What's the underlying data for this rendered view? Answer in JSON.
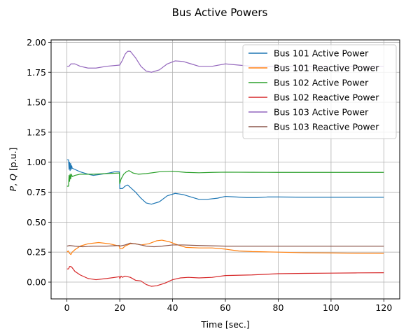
{
  "chart_data": {
    "type": "line",
    "title": "Bus Active Powers",
    "xlabel": "Time [sec.]",
    "ylabel": "P, Q [p.u.]",
    "xlim": [
      -6,
      126
    ],
    "ylim": [
      -0.14,
      2.02
    ],
    "xticks": [
      0,
      20,
      40,
      60,
      80,
      100,
      120
    ],
    "yticks": [
      0.0,
      0.25,
      0.5,
      0.75,
      1.0,
      1.25,
      1.5,
      1.75,
      2.0
    ],
    "xtick_labels": [
      "0",
      "20",
      "40",
      "60",
      "80",
      "100",
      "120"
    ],
    "ytick_labels": [
      "0.00",
      "0.25",
      "0.50",
      "0.75",
      "1.00",
      "1.25",
      "1.50",
      "1.75",
      "2.00"
    ],
    "grid": true,
    "legend_position": "top-right",
    "series": [
      {
        "name": "Bus 101 Active Power",
        "color": "#1f77b4",
        "points": [
          [
            0,
            1.02
          ],
          [
            0.6,
            1.02
          ],
          [
            0.8,
            0.94
          ],
          [
            1.0,
            1.0
          ],
          [
            1.2,
            0.93
          ],
          [
            1.4,
            0.99
          ],
          [
            1.6,
            0.94
          ],
          [
            1.8,
            0.97
          ],
          [
            2,
            0.95
          ],
          [
            3,
            0.94
          ],
          [
            5,
            0.92
          ],
          [
            8,
            0.9
          ],
          [
            10,
            0.89
          ],
          [
            13,
            0.9
          ],
          [
            16,
            0.91
          ],
          [
            18,
            0.92
          ],
          [
            19.9,
            0.92
          ],
          [
            20,
            0.78
          ],
          [
            21,
            0.78
          ],
          [
            22,
            0.8
          ],
          [
            23,
            0.81
          ],
          [
            24,
            0.79
          ],
          [
            26,
            0.75
          ],
          [
            28,
            0.7
          ],
          [
            30,
            0.66
          ],
          [
            32,
            0.65
          ],
          [
            35,
            0.67
          ],
          [
            38,
            0.72
          ],
          [
            41,
            0.74
          ],
          [
            44,
            0.73
          ],
          [
            47,
            0.71
          ],
          [
            50,
            0.69
          ],
          [
            53,
            0.69
          ],
          [
            57,
            0.7
          ],
          [
            60,
            0.715
          ],
          [
            64,
            0.71
          ],
          [
            68,
            0.705
          ],
          [
            72,
            0.705
          ],
          [
            76,
            0.71
          ],
          [
            80,
            0.71
          ],
          [
            90,
            0.708
          ],
          [
            100,
            0.708
          ],
          [
            110,
            0.708
          ],
          [
            120,
            0.708
          ]
        ]
      },
      {
        "name": "Bus 101 Reactive Power",
        "color": "#ff7f0e",
        "points": [
          [
            0,
            0.25
          ],
          [
            0.5,
            0.26
          ],
          [
            1,
            0.24
          ],
          [
            1.5,
            0.23
          ],
          [
            2,
            0.25
          ],
          [
            3,
            0.27
          ],
          [
            5,
            0.3
          ],
          [
            8,
            0.32
          ],
          [
            12,
            0.33
          ],
          [
            16,
            0.32
          ],
          [
            19.9,
            0.3
          ],
          [
            20,
            0.28
          ],
          [
            21,
            0.28
          ],
          [
            22,
            0.3
          ],
          [
            24,
            0.32
          ],
          [
            26,
            0.32
          ],
          [
            28,
            0.31
          ],
          [
            31,
            0.32
          ],
          [
            34,
            0.345
          ],
          [
            36,
            0.35
          ],
          [
            39,
            0.335
          ],
          [
            42,
            0.31
          ],
          [
            45,
            0.29
          ],
          [
            50,
            0.285
          ],
          [
            55,
            0.285
          ],
          [
            60,
            0.275
          ],
          [
            65,
            0.26
          ],
          [
            70,
            0.255
          ],
          [
            80,
            0.25
          ],
          [
            90,
            0.245
          ],
          [
            100,
            0.243
          ],
          [
            110,
            0.241
          ],
          [
            120,
            0.24
          ]
        ]
      },
      {
        "name": "Bus 102 Active Power",
        "color": "#2ca02c",
        "points": [
          [
            0,
            0.8
          ],
          [
            0.6,
            0.8
          ],
          [
            0.8,
            0.89
          ],
          [
            1.0,
            0.84
          ],
          [
            1.2,
            0.9
          ],
          [
            1.4,
            0.86
          ],
          [
            1.7,
            0.9
          ],
          [
            2,
            0.88
          ],
          [
            3,
            0.89
          ],
          [
            5,
            0.9
          ],
          [
            10,
            0.9
          ],
          [
            15,
            0.905
          ],
          [
            19.9,
            0.91
          ],
          [
            20,
            0.82
          ],
          [
            20.5,
            0.86
          ],
          [
            21.5,
            0.9
          ],
          [
            22.5,
            0.92
          ],
          [
            23.5,
            0.93
          ],
          [
            25,
            0.91
          ],
          [
            27,
            0.9
          ],
          [
            30,
            0.905
          ],
          [
            35,
            0.92
          ],
          [
            40,
            0.925
          ],
          [
            45,
            0.915
          ],
          [
            50,
            0.912
          ],
          [
            55,
            0.915
          ],
          [
            60,
            0.917
          ],
          [
            70,
            0.916
          ],
          [
            80,
            0.915
          ],
          [
            100,
            0.915
          ],
          [
            120,
            0.915
          ]
        ]
      },
      {
        "name": "Bus 102 Reactive Power",
        "color": "#d62728",
        "points": [
          [
            0,
            0.11
          ],
          [
            0.6,
            0.11
          ],
          [
            1,
            0.13
          ],
          [
            1.5,
            0.13
          ],
          [
            2,
            0.12
          ],
          [
            3,
            0.09
          ],
          [
            5,
            0.06
          ],
          [
            8,
            0.03
          ],
          [
            11,
            0.02
          ],
          [
            15,
            0.03
          ],
          [
            19.9,
            0.045
          ],
          [
            20,
            0.03
          ],
          [
            20.5,
            0.05
          ],
          [
            21,
            0.04
          ],
          [
            22,
            0.05
          ],
          [
            24,
            0.04
          ],
          [
            26,
            0.015
          ],
          [
            28,
            0.01
          ],
          [
            30,
            -0.02
          ],
          [
            32,
            -0.035
          ],
          [
            34,
            -0.03
          ],
          [
            37,
            -0.01
          ],
          [
            40,
            0.02
          ],
          [
            43,
            0.035
          ],
          [
            46,
            0.04
          ],
          [
            50,
            0.035
          ],
          [
            55,
            0.04
          ],
          [
            60,
            0.055
          ],
          [
            70,
            0.06
          ],
          [
            80,
            0.07
          ],
          [
            90,
            0.073
          ],
          [
            100,
            0.075
          ],
          [
            110,
            0.077
          ],
          [
            120,
            0.078
          ]
        ]
      },
      {
        "name": "Bus 103 Active Power",
        "color": "#9467bd",
        "points": [
          [
            0,
            1.8
          ],
          [
            0.8,
            1.8
          ],
          [
            1.5,
            1.82
          ],
          [
            3,
            1.82
          ],
          [
            5,
            1.8
          ],
          [
            8,
            1.785
          ],
          [
            11,
            1.785
          ],
          [
            15,
            1.8
          ],
          [
            19.9,
            1.81
          ],
          [
            20,
            1.81
          ],
          [
            21,
            1.85
          ],
          [
            22,
            1.9
          ],
          [
            23,
            1.925
          ],
          [
            24,
            1.925
          ],
          [
            26,
            1.87
          ],
          [
            28,
            1.8
          ],
          [
            30,
            1.76
          ],
          [
            32,
            1.75
          ],
          [
            35,
            1.77
          ],
          [
            38,
            1.82
          ],
          [
            41,
            1.845
          ],
          [
            44,
            1.84
          ],
          [
            47,
            1.82
          ],
          [
            50,
            1.8
          ],
          [
            55,
            1.8
          ],
          [
            60,
            1.82
          ],
          [
            65,
            1.81
          ],
          [
            70,
            1.8
          ],
          [
            75,
            1.8
          ],
          [
            80,
            1.8
          ],
          [
            100,
            1.8
          ],
          [
            120,
            1.8
          ]
        ]
      },
      {
        "name": "Bus 103 Reactive Power",
        "color": "#8c564b",
        "points": [
          [
            0,
            0.3
          ],
          [
            1,
            0.305
          ],
          [
            3,
            0.3
          ],
          [
            6,
            0.295
          ],
          [
            10,
            0.3
          ],
          [
            15,
            0.3
          ],
          [
            19.9,
            0.305
          ],
          [
            20,
            0.3
          ],
          [
            22,
            0.31
          ],
          [
            24,
            0.325
          ],
          [
            27,
            0.315
          ],
          [
            30,
            0.3
          ],
          [
            33,
            0.295
          ],
          [
            36,
            0.3
          ],
          [
            40,
            0.31
          ],
          [
            44,
            0.31
          ],
          [
            50,
            0.305
          ],
          [
            60,
            0.3
          ],
          [
            70,
            0.3
          ],
          [
            80,
            0.3
          ],
          [
            100,
            0.3
          ],
          [
            120,
            0.3
          ]
        ]
      }
    ]
  }
}
